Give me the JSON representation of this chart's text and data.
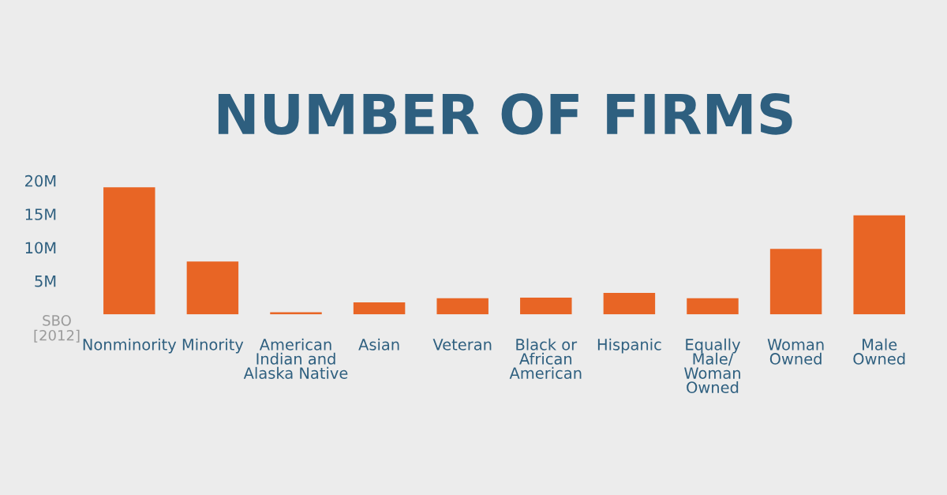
{
  "chart_data": {
    "type": "bar",
    "title": "NUMBER OF FIRMS",
    "categories": [
      "Nonminority",
      "Minority",
      "American\nIndian and\nAlaska Native",
      "Asian",
      "Veteran",
      "Black or\nAfrican\nAmerican",
      "Hispanic",
      "Equally\nMale/\nWoman\nOwned",
      "Woman\nOwned",
      "Male\nOwned"
    ],
    "values": [
      19.0,
      7.9,
      0.3,
      1.8,
      2.4,
      2.5,
      3.2,
      2.4,
      9.8,
      14.8
    ],
    "color": "#e86525",
    "ylim": [
      0,
      20
    ],
    "yticks": [
      {
        "value": 5,
        "label": "5M"
      },
      {
        "value": 10,
        "label": "10M"
      },
      {
        "value": 15,
        "label": "15M"
      },
      {
        "value": 20,
        "label": "20M"
      }
    ],
    "grid": false,
    "annotations": [
      "SBO\n[2012]"
    ]
  }
}
